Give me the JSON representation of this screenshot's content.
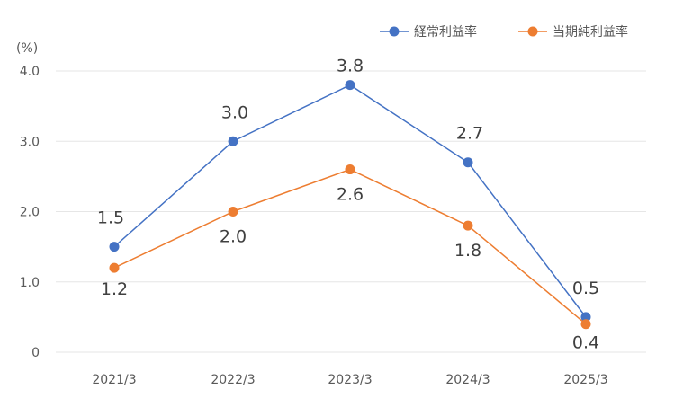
{
  "chart_data": {
    "type": "line",
    "y_unit_label": "(%)",
    "categories": [
      "2021/3",
      "2022/3",
      "2023/3",
      "2024/3",
      "2025/3"
    ],
    "y_ticks": [
      "0",
      "1.0",
      "2.0",
      "3.0",
      "4.0"
    ],
    "y_tick_values": [
      0,
      1,
      2,
      3,
      4
    ],
    "ylim": [
      0,
      4
    ],
    "grid": true,
    "legend_position": "top-right",
    "series": [
      {
        "name": "経常利益率",
        "color": "#4472C4",
        "values": [
          1.5,
          3.0,
          3.8,
          2.7,
          0.5
        ],
        "labels": [
          "1.5",
          "3.0",
          "3.8",
          "2.7",
          "0.5"
        ]
      },
      {
        "name": "当期純利益率",
        "color": "#ED7D31",
        "values": [
          1.2,
          2.0,
          2.6,
          1.8,
          0.4
        ],
        "labels": [
          "1.2",
          "2.0",
          "2.6",
          "1.8",
          "0.4"
        ]
      }
    ]
  }
}
